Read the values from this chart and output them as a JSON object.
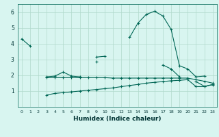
{
  "title": "",
  "xlabel": "Humidex (Indice chaleur)",
  "ylabel": "",
  "xlim": [
    -0.5,
    23.5
  ],
  "ylim": [
    0,
    6.5
  ],
  "xticks": [
    0,
    1,
    2,
    3,
    4,
    5,
    6,
    7,
    8,
    9,
    10,
    11,
    12,
    13,
    14,
    15,
    16,
    17,
    18,
    19,
    20,
    21,
    22,
    23
  ],
  "yticks": [
    1,
    2,
    3,
    4,
    5,
    6
  ],
  "bg_color": "#d8f5f0",
  "grid_color": "#b0d9cc",
  "line_color": "#006655",
  "line1_y": [
    4.3,
    3.85,
    null,
    null,
    null,
    null,
    null,
    null,
    null,
    3.15,
    3.2,
    null,
    null,
    4.4,
    5.3,
    5.85,
    6.05,
    5.75,
    4.9,
    2.6,
    2.4,
    1.9,
    1.95,
    null
  ],
  "line2_y": [
    null,
    null,
    null,
    1.9,
    1.95,
    2.2,
    1.95,
    1.9,
    null,
    2.85,
    null,
    null,
    null,
    null,
    null,
    null,
    null,
    2.65,
    2.4,
    1.9,
    null,
    1.6,
    1.3,
    1.4
  ],
  "line3_y": [
    null,
    null,
    null,
    1.85,
    1.85,
    1.85,
    1.85,
    1.85,
    1.85,
    1.85,
    1.85,
    1.82,
    1.82,
    1.82,
    1.82,
    1.82,
    1.82,
    1.82,
    1.82,
    1.82,
    1.82,
    1.72,
    1.62,
    1.5
  ],
  "line4_y": [
    null,
    null,
    null,
    0.75,
    0.85,
    0.9,
    0.95,
    1.0,
    1.05,
    1.1,
    1.15,
    1.2,
    1.28,
    1.35,
    1.42,
    1.5,
    1.55,
    1.6,
    1.65,
    1.68,
    1.72,
    1.28,
    1.28,
    1.42
  ]
}
